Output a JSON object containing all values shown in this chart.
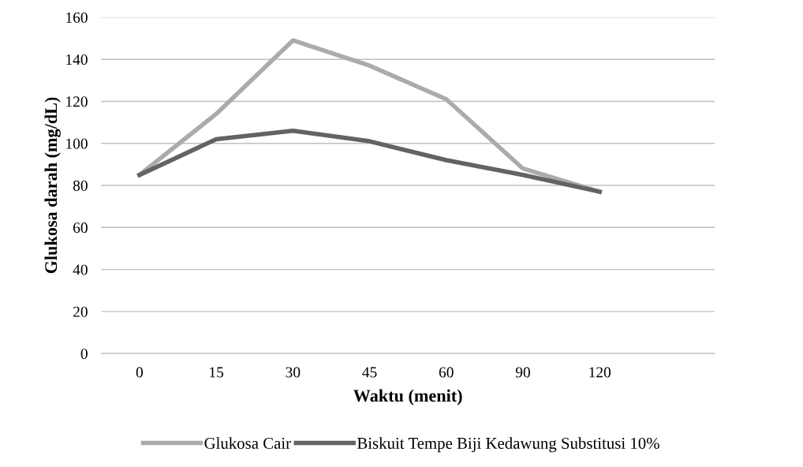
{
  "chart_data": {
    "type": "line",
    "xlabel": "Waktu (menit)",
    "ylabel": "Glukosa darah (mg/dL)",
    "categories": [
      "0",
      "15",
      "30",
      "45",
      "60",
      "90",
      "120",
      null
    ],
    "series": [
      {
        "name": "Glukosa Cair",
        "color": "#ababab",
        "values": [
          85,
          114,
          149,
          137,
          121,
          88,
          77,
          null
        ]
      },
      {
        "name": "Biskuit Tempe Biji Kedawung Substitusi 10%",
        "color": "#636363",
        "values": [
          85,
          102,
          106,
          101,
          92,
          85,
          77,
          null
        ]
      }
    ],
    "ylim": [
      0,
      160
    ],
    "yticks": [
      0,
      20,
      40,
      60,
      80,
      100,
      120,
      140,
      160
    ],
    "grid": "y",
    "legend": "bottom",
    "marker": "none",
    "line_style": "solid"
  }
}
